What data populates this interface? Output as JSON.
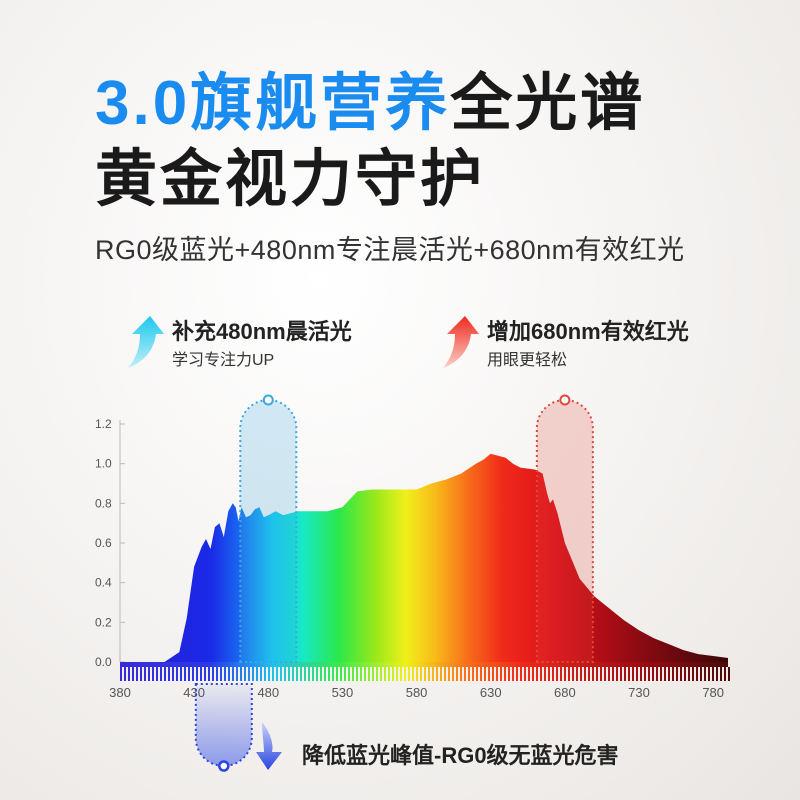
{
  "header": {
    "title_part1": "3.0旗舰营养",
    "title_part2": "全光谱",
    "title_line2": "黄金视力守护",
    "subtitle": "RG0级蓝光+480nm专注晨活光+680nm有效红光"
  },
  "features": [
    {
      "title": "补充480nm晨活光",
      "subtitle": "学习专注力UP",
      "icon": "up-arrow-cyan-icon",
      "color": "#19c3e8"
    },
    {
      "title": "增加680nm有效红光",
      "subtitle": "用眼更轻松",
      "icon": "up-arrow-red-icon",
      "color": "#f0382a"
    }
  ],
  "bottom_note": {
    "text": "降低蓝光峰值-RG0级无蓝光危害",
    "icon": "down-arrow-blue-icon",
    "color": "#2a55e8"
  },
  "chart_data": {
    "type": "area",
    "xlim": [
      380,
      790
    ],
    "ylim": [
      0,
      1.2
    ],
    "x_ticks": [
      380,
      430,
      480,
      530,
      580,
      630,
      680,
      730,
      780
    ],
    "y_ticks": [
      "0.0",
      "0.2",
      "0.4",
      "0.6",
      "0.8",
      "1.0",
      "1.2"
    ],
    "grid": false,
    "series": [
      {
        "x": [
          380,
          410,
          420,
          425,
          430,
          435,
          438,
          441,
          444,
          447,
          450,
          453,
          456,
          458,
          460,
          462,
          465,
          468,
          471,
          474,
          477,
          480,
          485,
          490,
          495,
          500,
          505,
          510,
          515,
          520,
          525,
          530,
          540,
          550,
          560,
          570,
          580,
          590,
          600,
          610,
          620,
          625,
          630,
          635,
          640,
          645,
          650,
          660,
          665,
          668,
          670,
          672,
          675,
          680,
          690,
          700,
          710,
          720,
          730,
          740,
          750,
          760,
          770,
          780,
          790
        ],
        "y": [
          0.0,
          0.0,
          0.05,
          0.22,
          0.48,
          0.58,
          0.62,
          0.57,
          0.68,
          0.7,
          0.63,
          0.76,
          0.8,
          0.78,
          0.71,
          0.78,
          0.73,
          0.74,
          0.77,
          0.78,
          0.73,
          0.74,
          0.76,
          0.74,
          0.75,
          0.76,
          0.76,
          0.76,
          0.76,
          0.76,
          0.77,
          0.78,
          0.86,
          0.87,
          0.87,
          0.87,
          0.87,
          0.9,
          0.92,
          0.95,
          1.0,
          1.02,
          1.05,
          1.04,
          1.03,
          1.0,
          0.98,
          0.97,
          0.95,
          0.85,
          0.8,
          0.82,
          0.75,
          0.6,
          0.42,
          0.33,
          0.27,
          0.21,
          0.16,
          0.12,
          0.09,
          0.06,
          0.04,
          0.03,
          0.02
        ]
      }
    ],
    "highlights": [
      {
        "x_center": 480,
        "color": "#3aa8e0",
        "direction": "up"
      },
      {
        "x_center": 680,
        "color": "#e04a3a",
        "direction": "up"
      },
      {
        "x_center": 450,
        "color": "#2a45e0",
        "direction": "down"
      }
    ]
  }
}
